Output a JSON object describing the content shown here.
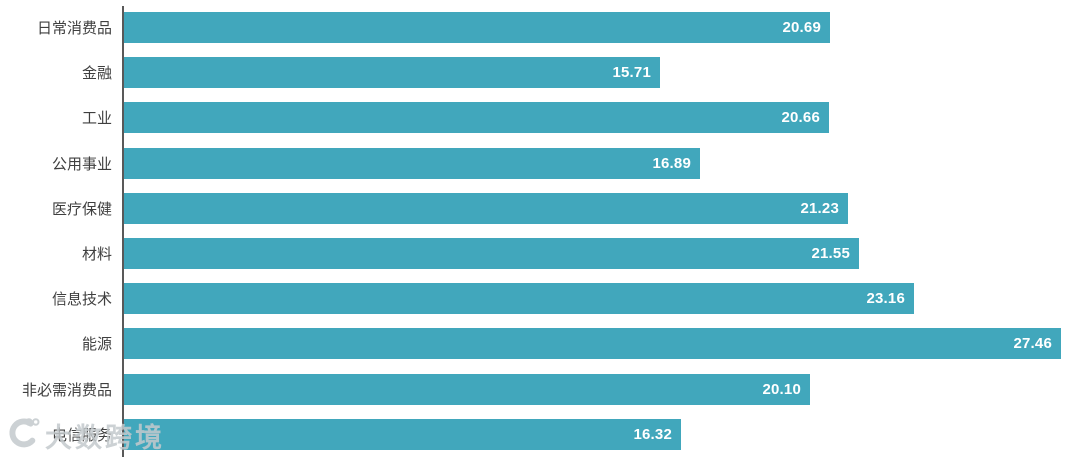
{
  "chart_data": {
    "type": "bar",
    "orientation": "horizontal",
    "title": "",
    "xlabel": "",
    "ylabel": "",
    "categories": [
      "日常消费品",
      "金融",
      "工业",
      "公用事业",
      "医疗保健",
      "材料",
      "信息技术",
      "能源",
      "非必需消费品",
      "电信服务"
    ],
    "values": [
      20.69,
      15.71,
      20.66,
      16.89,
      21.23,
      21.55,
      23.16,
      27.46,
      20.1,
      16.32
    ],
    "value_labels": [
      "20.69",
      "15.71",
      "20.66",
      "16.89",
      "21.23",
      "21.55",
      "23.16",
      "27.46",
      "20.10",
      "16.32"
    ],
    "xlim": [
      0,
      28.5
    ],
    "grid": false,
    "legend": false,
    "bar_color": "#41A7BC",
    "value_label_color": "#FFFFFF",
    "category_label_color": "#3F3F3F",
    "axis_line_color": "#595959"
  },
  "watermark": {
    "logo_icon": "10100-swoosh-logo",
    "text": "大数跨境"
  }
}
